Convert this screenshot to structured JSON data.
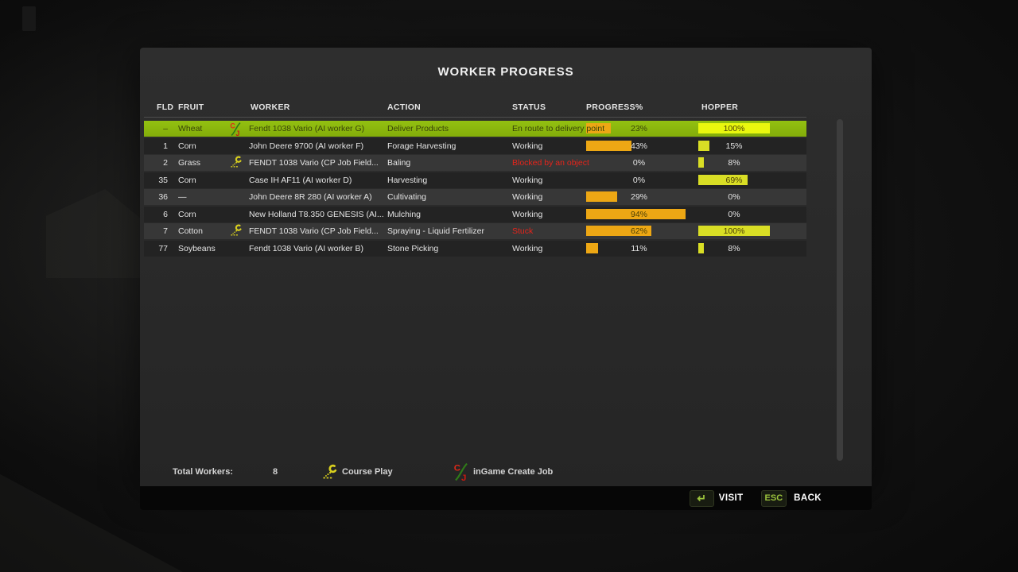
{
  "dialog": {
    "title": "WORKER PROGRESS",
    "columns": [
      "FLD",
      "FRUIT",
      "WORKER",
      "ACTION",
      "STATUS",
      "PROGRESS%",
      "HOPPER"
    ],
    "rows": [
      {
        "fld": "–",
        "fruit": "Wheat",
        "worker_icon": "cj-icon",
        "worker": "Fendt 1038 Vario (AI worker G)",
        "action": "Deliver Products",
        "status": "En route to delivery point",
        "status_alert": false,
        "progress_pct": 23,
        "hopper_pct": 100,
        "selected": true
      },
      {
        "fld": "1",
        "fruit": "Corn",
        "worker_icon": null,
        "worker": "John Deere 9700 (AI worker F)",
        "action": "Forage Harvesting",
        "status": "Working",
        "status_alert": false,
        "progress_pct": 43,
        "hopper_pct": 15,
        "selected": false
      },
      {
        "fld": "2",
        "fruit": "Grass",
        "worker_icon": "cp-icon",
        "worker": "FENDT 1038 Vario  (CP Job Field...",
        "action": "Baling",
        "status": "Blocked by an object",
        "status_alert": true,
        "progress_pct": 0,
        "hopper_pct": 8,
        "selected": false
      },
      {
        "fld": "35",
        "fruit": "Corn",
        "worker_icon": null,
        "worker": "Case IH AF11 (AI worker D)",
        "action": "Harvesting",
        "status": "Working",
        "status_alert": false,
        "progress_pct": 0,
        "hopper_pct": 69,
        "selected": false
      },
      {
        "fld": "36",
        "fruit": "—",
        "worker_icon": null,
        "worker": "John Deere 8R 280 (AI worker A)",
        "action": "Cultivating",
        "status": "Working",
        "status_alert": false,
        "progress_pct": 29,
        "hopper_pct": 0,
        "selected": false
      },
      {
        "fld": "6",
        "fruit": "Corn",
        "worker_icon": null,
        "worker": "New Holland T8.350 GENESIS (AI...",
        "action": "Mulching",
        "status": "Working",
        "status_alert": false,
        "progress_pct": 94,
        "hopper_pct": 0,
        "selected": false
      },
      {
        "fld": "7",
        "fruit": "Cotton",
        "worker_icon": "cp-icon",
        "worker": "FENDT 1038 Vario  (CP Job Field...",
        "action": "Spraying - Liquid Fertilizer",
        "status": "Stuck",
        "status_alert": true,
        "progress_pct": 62,
        "hopper_pct": 100,
        "selected": false
      },
      {
        "fld": "77",
        "fruit": "Soybeans",
        "worker_icon": null,
        "worker": "Fendt 1038 Vario (AI worker B)",
        "action": "Stone Picking",
        "status": "Working",
        "status_alert": false,
        "progress_pct": 11,
        "hopper_pct": 8,
        "selected": false
      }
    ],
    "footer": {
      "total_workers_label": "Total Workers:",
      "total_workers_value": "8",
      "legend_cp_label": "Course Play",
      "legend_cj_label": "inGame Create Job"
    }
  },
  "action_bar": {
    "visit_key_glyph": "↵",
    "visit_label": "VISIT",
    "back_key": "ESC",
    "back_label": "BACK"
  },
  "colors": {
    "selected_row_green": "#8bb50e",
    "progress_fill_orange": "#eda714",
    "hopper_fill_yellow": "#d9de25",
    "hopper_fill_bright": "#e9f70e",
    "alert_red": "#e6241b",
    "key_green": "#9cc43c"
  }
}
